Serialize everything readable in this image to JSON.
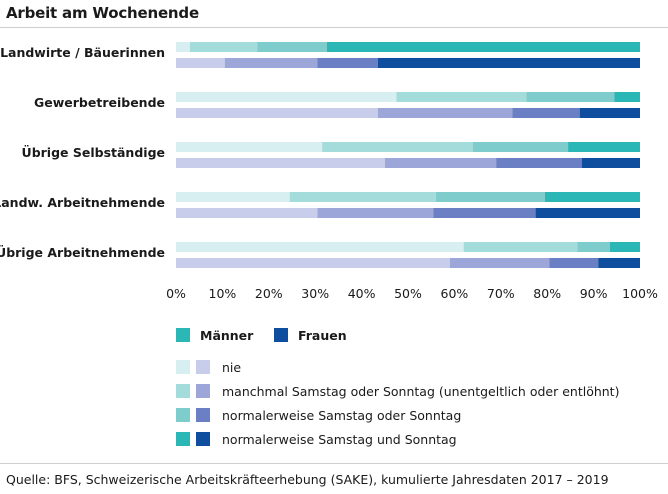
{
  "title": "Arbeit am Wochenende",
  "source": "Quelle: BFS, Schweizerische Arbeitskräfteerhebung (SAKE), kumulierte Jahresdaten 2017 – 2019",
  "chart_data": {
    "type": "bar",
    "orientation": "horizontal",
    "stacked": true,
    "percent_stacked": true,
    "categories": [
      "Landwirte / Bäuerinnen",
      "Gewerbetreibende",
      "Übrige Selbständige",
      "Landw. Arbeitnehmende",
      "Übrige Arbeitnehmende"
    ],
    "groups": [
      "Männer",
      "Frauen"
    ],
    "segments": [
      "nie",
      "manchmal Samstag oder Sonntag (unentgeltlich oder entlöhnt)",
      "normalerweise Samstag oder Sonntag",
      "normalerweise Samstag und Sonntag"
    ],
    "series": [
      {
        "group": "Männer",
        "segment": "nie",
        "values": [
          3,
          47.5,
          31.5,
          24.5,
          62
        ]
      },
      {
        "group": "Männer",
        "segment": "manchmal Samstag oder Sonntag (unentgeltlich oder entlöhnt)",
        "values": [
          14.5,
          28,
          32.5,
          31.5,
          24.5
        ]
      },
      {
        "group": "Männer",
        "segment": "normalerweise Samstag oder Sonntag",
        "values": [
          15,
          19,
          20.5,
          23.5,
          7
        ]
      },
      {
        "group": "Männer",
        "segment": "normalerweise Samstag und Sonntag",
        "values": [
          67.5,
          5.5,
          15.5,
          20.5,
          6.5
        ]
      },
      {
        "group": "Frauen",
        "segment": "nie",
        "values": [
          10.5,
          43.5,
          45,
          30.5,
          59
        ]
      },
      {
        "group": "Frauen",
        "segment": "manchmal Samstag oder Sonntag (unentgeltlich oder entlöhnt)",
        "values": [
          20,
          29,
          24,
          25,
          21.5
        ]
      },
      {
        "group": "Frauen",
        "segment": "normalerweise Samstag oder Sonntag",
        "values": [
          13,
          14.5,
          18.5,
          22,
          10.5
        ]
      },
      {
        "group": "Frauen",
        "segment": "normalerweise Samstag und Sonntag",
        "values": [
          56.5,
          13,
          12.5,
          22.5,
          9
        ]
      }
    ],
    "colors": {
      "Männer": [
        "#d7eff0",
        "#a3dcdb",
        "#7ecccc",
        "#2bb7b6"
      ],
      "Frauen": [
        "#c8cdec",
        "#9da6d8",
        "#6b7fc4",
        "#0f4d9e"
      ]
    },
    "xlim": [
      0,
      100
    ],
    "x_ticks": [
      "0%",
      "10%",
      "20%",
      "30%",
      "40%",
      "50%",
      "60%",
      "70%",
      "80%",
      "90%",
      "100%"
    ],
    "grid": false,
    "legend": {
      "position": "bottom",
      "groups": [
        "Männer",
        "Frauen"
      ],
      "entries": [
        "nie",
        "manchmal Samstag oder Sonntag (unentgeltlich oder entlöhnt)",
        "normalerweise Samstag oder Sonntag",
        "normalerweise Samstag und Sonntag"
      ]
    }
  }
}
